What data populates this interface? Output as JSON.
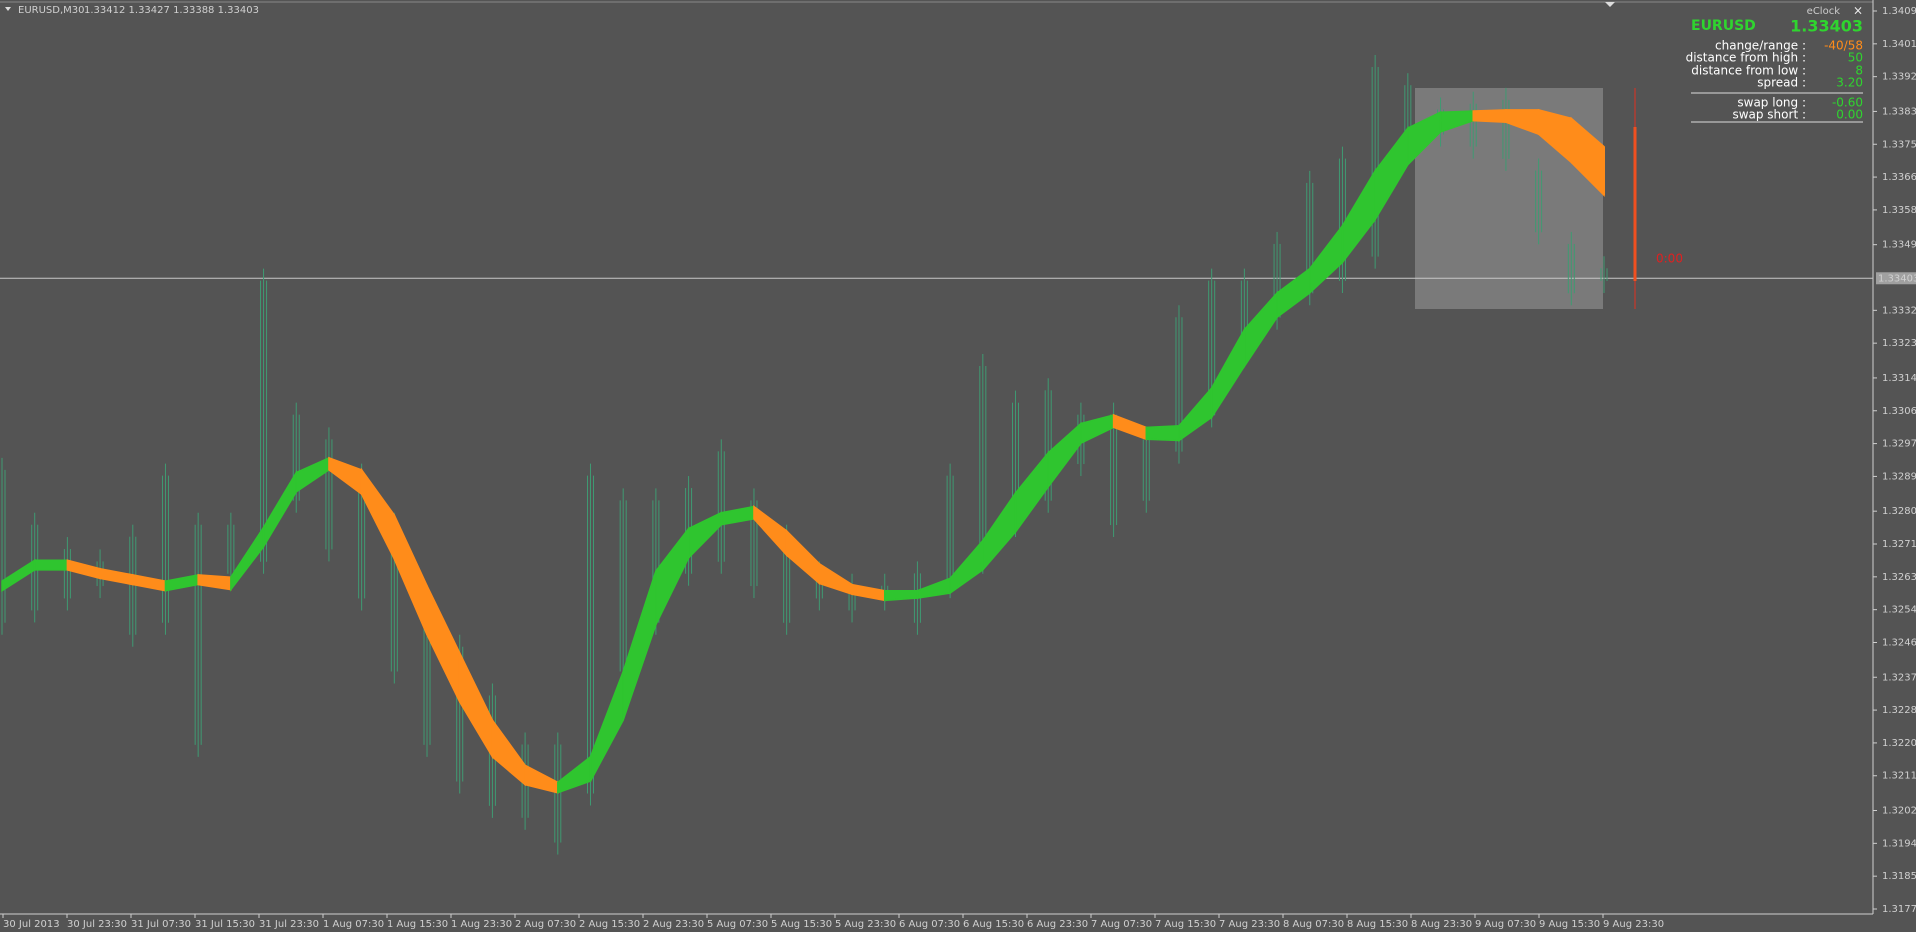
{
  "header": {
    "symbol": "EURUSD,M30",
    "quote": "1.33412 1.33427 1.33388 1.33403"
  },
  "price_scale": {
    "ylim": [
      1.3177,
      1.34095
    ],
    "labels": [
      "1.34095",
      "1.34010",
      "1.33925",
      "1.33835",
      "1.33750",
      "1.33665",
      "1.33580",
      "1.33490",
      "1.33320",
      "1.33235",
      "1.33145",
      "1.33060",
      "1.32975",
      "1.32890",
      "1.32800",
      "1.32715",
      "1.32630",
      "1.32545",
      "1.32460",
      "1.32370",
      "1.32285",
      "1.32200",
      "1.32115",
      "1.32025",
      "1.31940",
      "1.31855",
      "1.31770"
    ],
    "current": "1.33403"
  },
  "time_scale": [
    "30 Jul 2013",
    "30 Jul 23:30",
    "31 Jul 07:30",
    "31 Jul 15:30",
    "31 Jul 23:30",
    "1 Aug 07:30",
    "1 Aug 15:30",
    "1 Aug 23:30",
    "2 Aug 07:30",
    "2 Aug 15:30",
    "2 Aug 23:30",
    "5 Aug 07:30",
    "5 Aug 15:30",
    "5 Aug 23:30",
    "6 Aug 07:30",
    "6 Aug 15:30",
    "6 Aug 23:30",
    "7 Aug 07:30",
    "7 Aug 15:30",
    "7 Aug 23:30",
    "8 Aug 07:30",
    "8 Aug 15:30",
    "8 Aug 23:30",
    "9 Aug 07:30",
    "9 Aug 15:30",
    "9 Aug 23:30"
  ],
  "bars": {
    "high": [
      1.32938,
      1.32796,
      1.32733,
      1.32701,
      1.32765,
      1.32923,
      1.32796,
      1.32796,
      1.33428,
      1.33081,
      1.33017,
      1.32923,
      1.32796,
      1.32607,
      1.3248,
      1.32354,
      1.32227,
      1.32227,
      1.32923,
      1.32859,
      1.32859,
      1.32891,
      1.32986,
      1.32859,
      1.32765,
      1.3267,
      1.32638,
      1.32638,
      1.3267,
      1.32923,
      1.33207,
      1.33112,
      1.33144,
      1.33081,
      1.33081,
      1.33017,
      1.33333,
      1.33428,
      1.33428,
      1.33523,
      1.33681,
      1.33744,
      1.33981,
      1.33934,
      1.33871,
      1.33886,
      1.33896,
      1.33713,
      1.33523,
      1.3346
    ],
    "low": [
      1.3248,
      1.32512,
      1.32543,
      1.32575,
      1.32449,
      1.3248,
      1.32164,
      1.32607,
      1.32638,
      1.32796,
      1.3267,
      1.32543,
      1.32354,
      1.32164,
      1.32069,
      1.32006,
      1.31975,
      1.31911,
      1.32038,
      1.32354,
      1.3248,
      1.32607,
      1.32638,
      1.32575,
      1.3248,
      1.32543,
      1.32512,
      1.32543,
      1.3248,
      1.32575,
      1.32638,
      1.32733,
      1.32796,
      1.32891,
      1.32733,
      1.32796,
      1.32923,
      1.33017,
      1.33175,
      1.3327,
      1.33333,
      1.33365,
      1.33428,
      1.33713,
      1.33744,
      1.33713,
      1.33681,
      1.33491,
      1.33333,
      1.33365
    ]
  },
  "band": {
    "upper": [
      1.32619,
      1.32673,
      1.32673,
      1.32651,
      1.32635,
      1.32619,
      1.32635,
      1.32629,
      1.32758,
      1.329,
      1.32938,
      1.32907,
      1.3279,
      1.32607,
      1.32433,
      1.32259,
      1.32142,
      1.32098,
      1.32164,
      1.32385,
      1.32645,
      1.32755,
      1.32796,
      1.32812,
      1.32749,
      1.32664,
      1.3261,
      1.32594,
      1.32594,
      1.32626,
      1.32724,
      1.32847,
      1.32951,
      1.33027,
      1.33049,
      1.33017,
      1.33021,
      1.33119,
      1.3327,
      1.33365,
      1.33428,
      1.33539,
      1.33681,
      1.33792,
      1.33833,
      1.33836,
      1.33839,
      1.33839,
      1.33817,
      1.33744
    ],
    "lower": [
      1.32594,
      1.32648,
      1.32648,
      1.32626,
      1.3261,
      1.32594,
      1.3261,
      1.32597,
      1.32708,
      1.3285,
      1.32907,
      1.32844,
      1.32676,
      1.3248,
      1.32306,
      1.32164,
      1.32092,
      1.32071,
      1.32101,
      1.32259,
      1.32506,
      1.32679,
      1.32765,
      1.3278,
      1.32686,
      1.32613,
      1.32585,
      1.32569,
      1.32575,
      1.32588,
      1.32648,
      1.32746,
      1.32863,
      1.32976,
      1.33017,
      1.32986,
      1.32983,
      1.33043,
      1.33175,
      1.33302,
      1.33365,
      1.33444,
      1.33555,
      1.33697,
      1.33782,
      1.33811,
      1.33807,
      1.33776,
      1.33703,
      1.33618
    ]
  },
  "countdown": "0:00",
  "panel": {
    "title": "eClock",
    "close": "×",
    "symbol": "EURUSD",
    "price": "1.33403",
    "rows": [
      {
        "label": "change/range :",
        "value": "-40/58",
        "color": "#ff8c1a"
      },
      {
        "label": "distance from high :",
        "value": "50",
        "color": "#2fd52f"
      },
      {
        "label": "distance from low :",
        "value": "8",
        "color": "#2fd52f"
      },
      {
        "label": "spread :",
        "value": "3.20",
        "color": "#2fd52f"
      },
      {
        "label": "swap long :",
        "value": "-0.60",
        "color": "#2fd52f"
      },
      {
        "label": "swap short :",
        "value": "0.00",
        "color": "#2fd52f"
      }
    ]
  }
}
